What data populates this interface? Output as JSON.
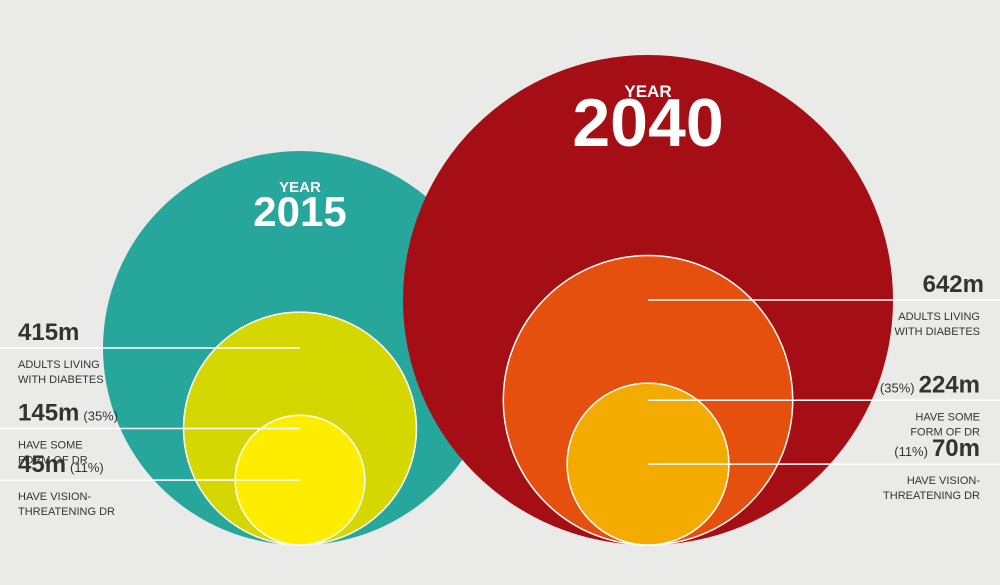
{
  "chart_data": {
    "type": "bubble",
    "groups": [
      {
        "label": "YEAR",
        "year": "2015",
        "items": [
          {
            "value": 415,
            "value_label": "415m",
            "note": [
              "ADULTS LIVING",
              "WITH DIABETES"
            ],
            "color": "#27a69b"
          },
          {
            "value": 145,
            "value_label": "145m",
            "share": "(35%)",
            "note": [
              "HAVE SOME",
              "FORM OF DR"
            ],
            "color": "#d4d800"
          },
          {
            "value": 45,
            "value_label": "45m",
            "share": "(11%)",
            "note": [
              "HAVE VISION-",
              "THREATENING DR"
            ],
            "color": "#ffed00"
          }
        ]
      },
      {
        "label": "YEAR",
        "year": "2040",
        "items": [
          {
            "value": 642,
            "value_label": "642m",
            "note": [
              "ADULTS LIVING",
              "WITH DIABETES"
            ],
            "color": "#a50e14"
          },
          {
            "value": 224,
            "value_label": "224m",
            "share": "(35%)",
            "note": [
              "HAVE SOME",
              "FORM OF DR"
            ],
            "color": "#e6500e"
          },
          {
            "value": 70,
            "value_label": "70m",
            "share": "(11%)",
            "note": [
              "HAVE VISION-",
              "THREATENING DR"
            ],
            "color": "#f4ab00"
          }
        ]
      }
    ]
  }
}
